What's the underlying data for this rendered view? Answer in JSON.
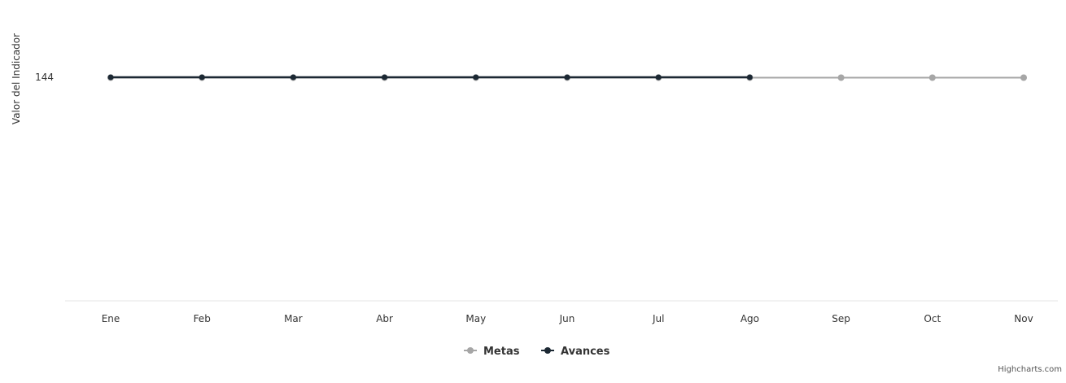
{
  "chart_data": {
    "type": "line",
    "categories": [
      "Ene",
      "Feb",
      "Mar",
      "Abr",
      "May",
      "Jun",
      "Jul",
      "Ago",
      "Sep",
      "Oct",
      "Nov"
    ],
    "ylabel": "Valor del Indicador",
    "yticks": [
      144
    ],
    "series": [
      {
        "name": "Metas",
        "color": "#a6a6a6",
        "values": [
          144,
          144,
          144,
          144,
          144,
          144,
          144,
          144,
          144,
          144,
          144
        ]
      },
      {
        "name": "Avances",
        "color": "#1c2833",
        "values": [
          144,
          144,
          144,
          144,
          144,
          144,
          144,
          144,
          null,
          null,
          null
        ]
      }
    ],
    "legend": {
      "position": "bottom-center"
    },
    "grid": false
  },
  "credits": "Highcharts.com"
}
